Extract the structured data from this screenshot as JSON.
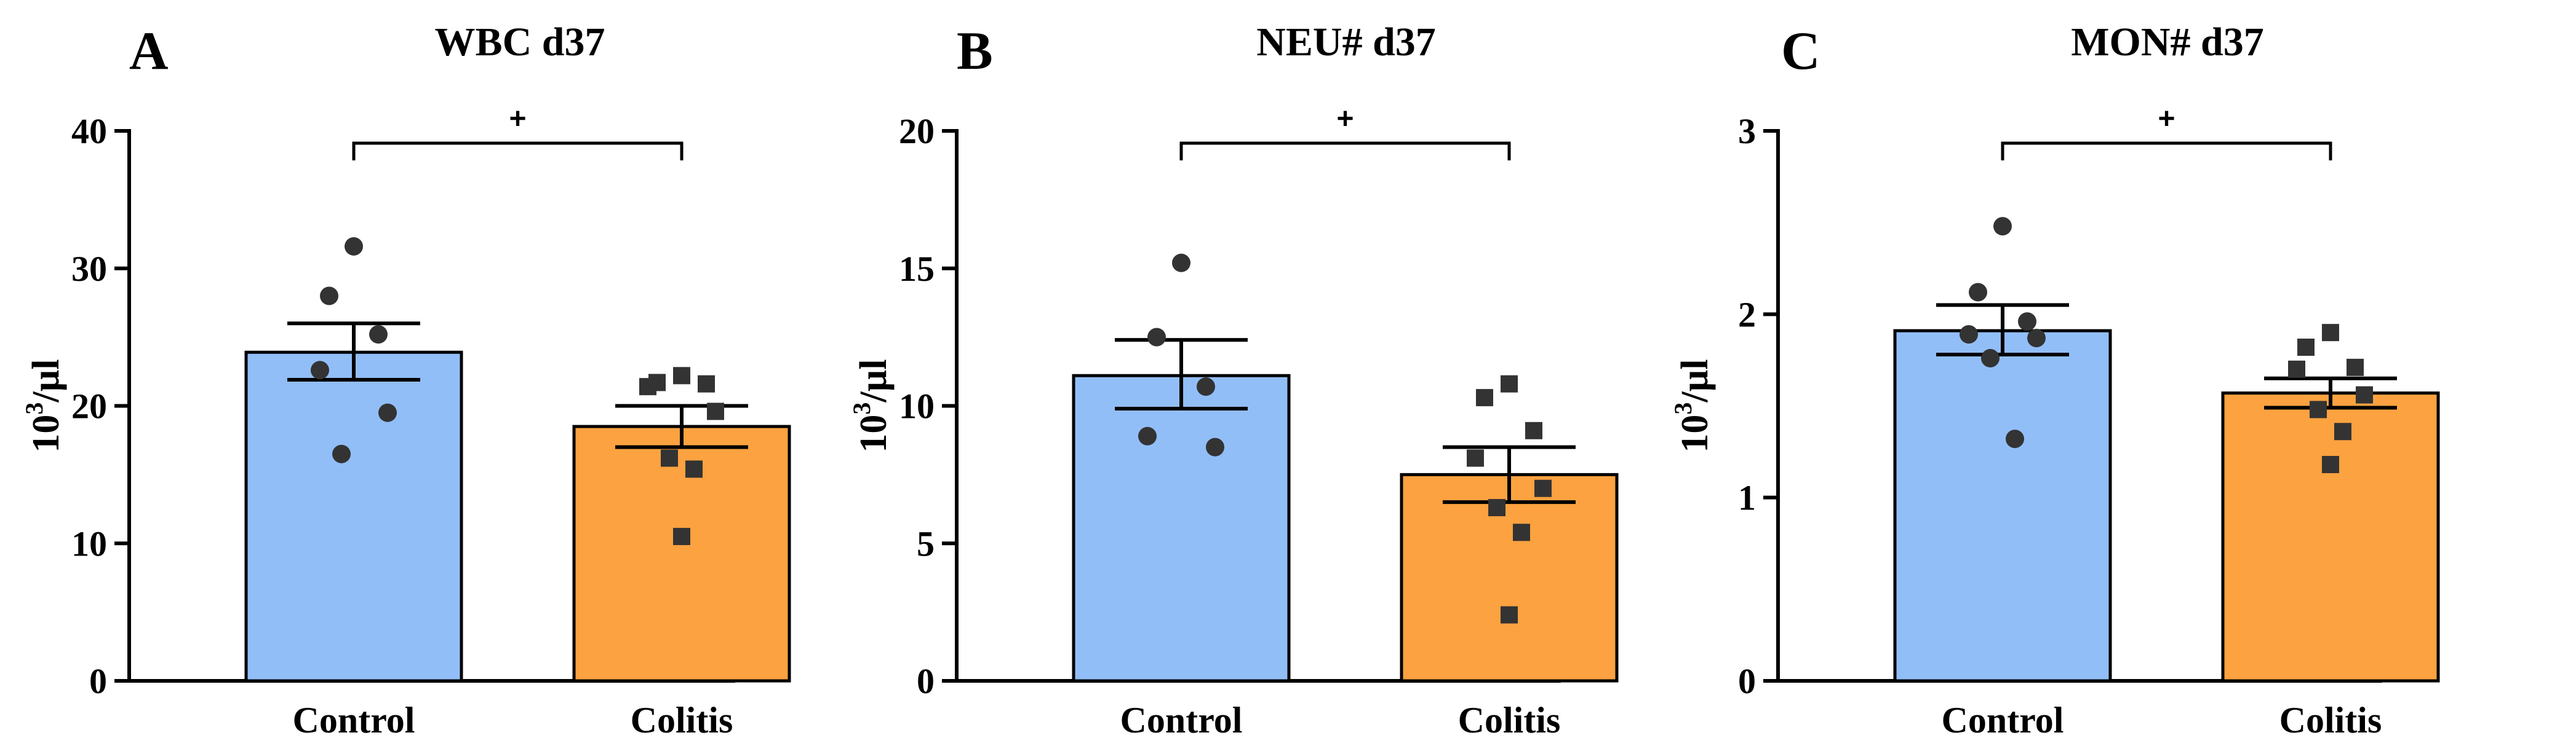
{
  "chart_data": [
    {
      "type": "bar",
      "panel": "A",
      "title": "WBC d37",
      "ylabel": "10",
      "ylabel_sup": "3",
      "ylabel_unit": "/µl",
      "ylim": [
        0,
        40
      ],
      "yticks": [
        0,
        10,
        20,
        30,
        40
      ],
      "categories": [
        "Control",
        "Colitis"
      ],
      "series": [
        {
          "name": "Control",
          "mean": 23.9,
          "sem_low": 21.9,
          "sem_high": 26.0,
          "color": "#92BEF8",
          "points": [
            31.6,
            28.0,
            25.2,
            22.6,
            19.5,
            16.5
          ],
          "marker": "circle"
        },
        {
          "name": "Colitis",
          "mean": 18.5,
          "sem_low": 17.0,
          "sem_high": 20.0,
          "color": "#FCA240",
          "points": [
            22.2,
            21.7,
            21.6,
            21.4,
            19.6,
            16.2,
            15.4,
            10.5
          ],
          "marker": "square"
        }
      ],
      "significance": "+"
    },
    {
      "type": "bar",
      "panel": "B",
      "title": "NEU# d37",
      "ylabel": "10",
      "ylabel_sup": "3",
      "ylabel_unit": "/µl",
      "ylim": [
        0,
        20
      ],
      "yticks": [
        0,
        5,
        10,
        15,
        20
      ],
      "categories": [
        "Control",
        "Colitis"
      ],
      "series": [
        {
          "name": "Control",
          "mean": 11.1,
          "sem_low": 9.9,
          "sem_high": 12.4,
          "color": "#92BEF8",
          "points": [
            15.2,
            12.5,
            10.7,
            8.9,
            8.5
          ],
          "marker": "circle"
        },
        {
          "name": "Colitis",
          "mean": 7.5,
          "sem_low": 6.5,
          "sem_high": 8.5,
          "color": "#FCA240",
          "points": [
            10.8,
            10.3,
            9.1,
            8.1,
            7.0,
            6.3,
            5.4,
            2.4
          ],
          "marker": "square"
        }
      ],
      "significance": "+"
    },
    {
      "type": "bar",
      "panel": "C",
      "title": "MON# d37",
      "ylabel": "10",
      "ylabel_sup": "3",
      "ylabel_unit": "/µl",
      "ylim": [
        0,
        3
      ],
      "yticks": [
        0,
        1,
        2,
        3
      ],
      "categories": [
        "Control",
        "Colitis"
      ],
      "series": [
        {
          "name": "Control",
          "mean": 1.91,
          "sem_low": 1.78,
          "sem_high": 2.05,
          "color": "#92BEF8",
          "points": [
            2.48,
            2.12,
            1.96,
            1.89,
            1.87,
            1.76,
            1.32
          ],
          "marker": "circle"
        },
        {
          "name": "Colitis",
          "mean": 1.57,
          "sem_low": 1.49,
          "sem_high": 1.65,
          "color": "#FCA240",
          "points": [
            1.9,
            1.82,
            1.71,
            1.7,
            1.56,
            1.48,
            1.36,
            1.18
          ],
          "marker": "square"
        }
      ],
      "significance": "+"
    }
  ]
}
